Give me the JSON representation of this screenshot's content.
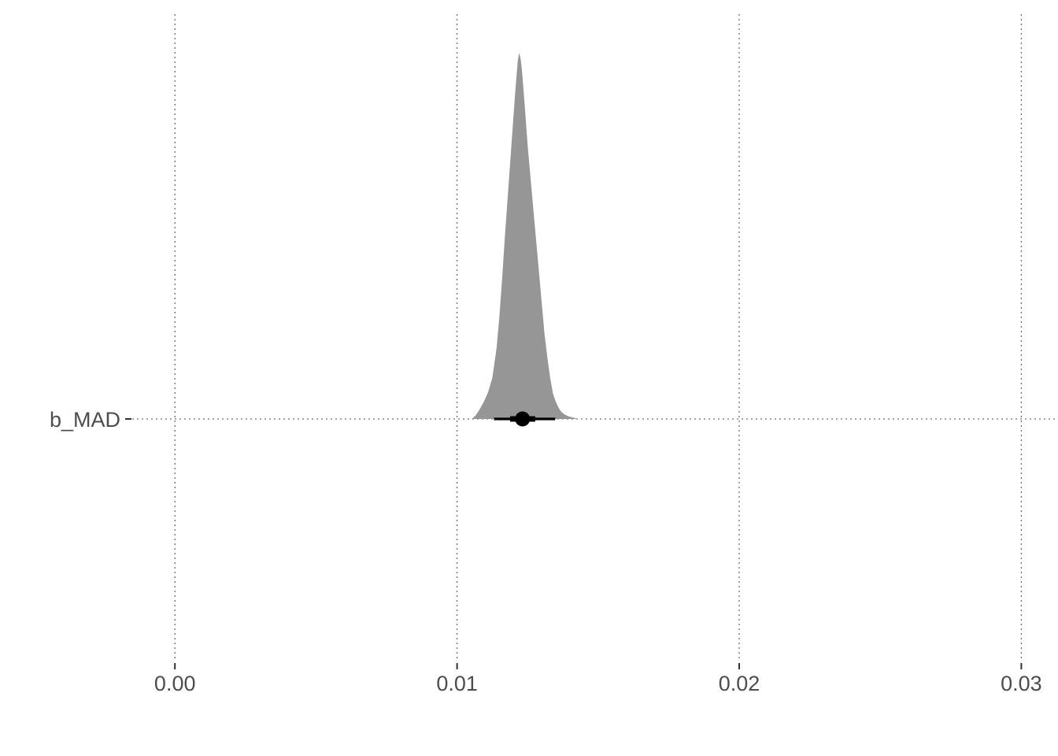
{
  "chart_data": {
    "type": "density-interval",
    "title": "",
    "xlabel": "",
    "ylabel": "",
    "xlim": [
      -0.0062,
      0.0313
    ],
    "x_ticks": [
      0.0,
      0.01,
      0.02,
      0.03
    ],
    "x_tick_labels": [
      "0.00",
      "0.01",
      "0.02",
      "0.03"
    ],
    "grid": true,
    "grid_style": "dotted",
    "parameters": [
      {
        "label": "b_MAD",
        "fill_color": "#969696",
        "point_color": "#000000",
        "median": 0.01232,
        "inner_interval": [
          0.01188,
          0.01277
        ],
        "outer_interval": [
          0.01131,
          0.01348
        ],
        "density": {
          "x": [
            0.01052,
            0.01065,
            0.0108,
            0.01095,
            0.0111,
            0.01125,
            0.0114,
            0.0115,
            0.0116,
            0.0117,
            0.0118,
            0.0119,
            0.012,
            0.01205,
            0.0121,
            0.01215,
            0.0122,
            0.01225,
            0.0123,
            0.01235,
            0.0124,
            0.01245,
            0.0125,
            0.0126,
            0.0127,
            0.0128,
            0.0129,
            0.013,
            0.0131,
            0.0132,
            0.0133,
            0.0134,
            0.0135,
            0.0136,
            0.0137,
            0.0138,
            0.0139,
            0.014,
            0.0141,
            0.0142,
            0.0143
          ],
          "y": [
            0.0,
            0.009,
            0.026,
            0.047,
            0.073,
            0.112,
            0.193,
            0.279,
            0.386,
            0.504,
            0.611,
            0.719,
            0.827,
            0.88,
            0.929,
            0.976,
            1.0,
            0.985,
            0.953,
            0.904,
            0.855,
            0.801,
            0.749,
            0.663,
            0.576,
            0.49,
            0.404,
            0.318,
            0.232,
            0.168,
            0.112,
            0.069,
            0.047,
            0.03,
            0.019,
            0.013,
            0.009,
            0.006,
            0.004,
            0.002,
            0.0
          ]
        }
      }
    ]
  }
}
